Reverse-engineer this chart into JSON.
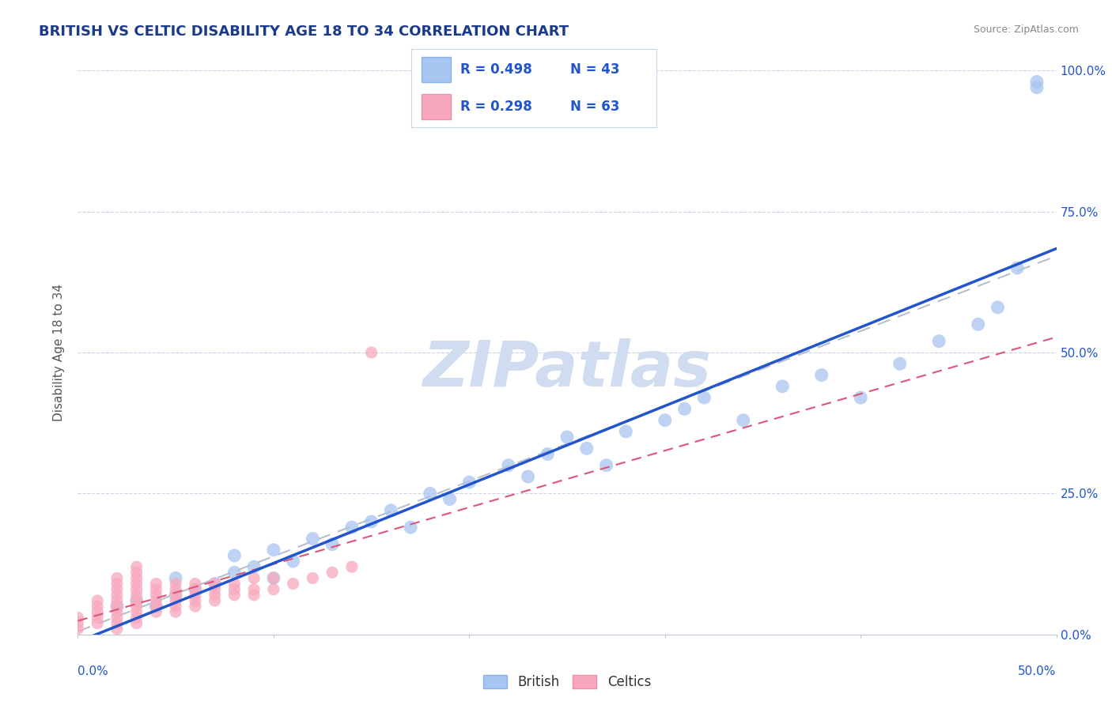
{
  "title": "BRITISH VS CELTIC DISABILITY AGE 18 TO 34 CORRELATION CHART",
  "source": "Source: ZipAtlas.com",
  "ylabel": "Disability Age 18 to 34",
  "ytick_labels": [
    "0.0%",
    "25.0%",
    "50.0%",
    "75.0%",
    "100.0%"
  ],
  "ytick_values": [
    0.0,
    0.25,
    0.5,
    0.75,
    1.0
  ],
  "xmin": 0.0,
  "xmax": 0.5,
  "ymin": 0.0,
  "ymax": 1.0,
  "british_R": 0.498,
  "british_N": 43,
  "celtic_R": 0.298,
  "celtic_N": 63,
  "british_color": "#a8c4f0",
  "celtic_color": "#f8a8bc",
  "british_line_color": "#2255cc",
  "celtic_line_color": "#dd5577",
  "trend_line_color": "#b0b8c8",
  "title_color": "#1a3a8a",
  "source_color": "#888888",
  "watermark_color": "#d0ddf0",
  "legend_text_color": "#2255cc",
  "background_color": "#ffffff",
  "grid_color": "#c8d4e8",
  "british_x": [
    0.02,
    0.03,
    0.04,
    0.05,
    0.05,
    0.06,
    0.07,
    0.08,
    0.08,
    0.09,
    0.1,
    0.1,
    0.11,
    0.12,
    0.13,
    0.14,
    0.15,
    0.16,
    0.17,
    0.18,
    0.19,
    0.2,
    0.22,
    0.23,
    0.24,
    0.25,
    0.26,
    0.27,
    0.28,
    0.3,
    0.31,
    0.32,
    0.34,
    0.36,
    0.38,
    0.4,
    0.42,
    0.44,
    0.46,
    0.47,
    0.48,
    0.49,
    0.49
  ],
  "british_y": [
    0.05,
    0.06,
    0.05,
    0.07,
    0.1,
    0.08,
    0.09,
    0.11,
    0.14,
    0.12,
    0.1,
    0.15,
    0.13,
    0.17,
    0.16,
    0.19,
    0.2,
    0.22,
    0.19,
    0.25,
    0.24,
    0.27,
    0.3,
    0.28,
    0.32,
    0.35,
    0.33,
    0.3,
    0.36,
    0.38,
    0.4,
    0.42,
    0.38,
    0.44,
    0.46,
    0.42,
    0.48,
    0.52,
    0.55,
    0.58,
    0.65,
    0.97,
    0.98
  ],
  "celtic_x": [
    0.0,
    0.0,
    0.0,
    0.01,
    0.01,
    0.01,
    0.01,
    0.01,
    0.02,
    0.02,
    0.02,
    0.02,
    0.02,
    0.02,
    0.02,
    0.02,
    0.02,
    0.02,
    0.03,
    0.03,
    0.03,
    0.03,
    0.03,
    0.03,
    0.03,
    0.03,
    0.03,
    0.03,
    0.03,
    0.04,
    0.04,
    0.04,
    0.04,
    0.04,
    0.04,
    0.05,
    0.05,
    0.05,
    0.05,
    0.05,
    0.05,
    0.06,
    0.06,
    0.06,
    0.06,
    0.06,
    0.07,
    0.07,
    0.07,
    0.07,
    0.08,
    0.08,
    0.08,
    0.09,
    0.09,
    0.09,
    0.1,
    0.1,
    0.11,
    0.12,
    0.13,
    0.14,
    0.15
  ],
  "celtic_y": [
    0.01,
    0.02,
    0.03,
    0.02,
    0.03,
    0.04,
    0.05,
    0.06,
    0.01,
    0.02,
    0.03,
    0.04,
    0.05,
    0.06,
    0.07,
    0.08,
    0.09,
    0.1,
    0.02,
    0.03,
    0.04,
    0.05,
    0.06,
    0.07,
    0.08,
    0.09,
    0.1,
    0.11,
    0.12,
    0.04,
    0.05,
    0.06,
    0.07,
    0.08,
    0.09,
    0.04,
    0.05,
    0.06,
    0.07,
    0.08,
    0.09,
    0.05,
    0.06,
    0.07,
    0.08,
    0.09,
    0.06,
    0.07,
    0.08,
    0.09,
    0.07,
    0.08,
    0.09,
    0.07,
    0.08,
    0.1,
    0.08,
    0.1,
    0.09,
    0.1,
    0.11,
    0.12,
    0.5
  ]
}
